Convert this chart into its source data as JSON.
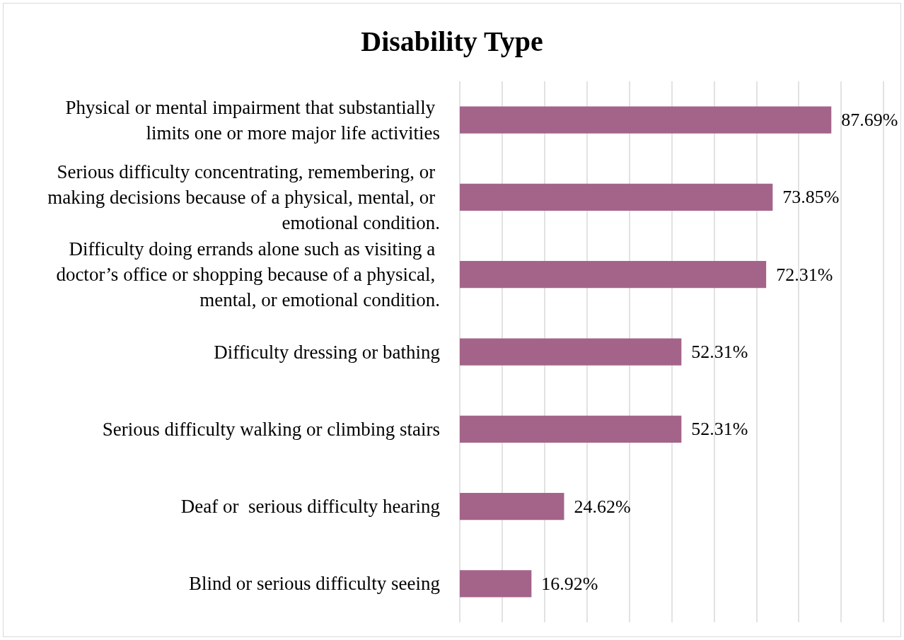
{
  "chart_data": {
    "type": "bar",
    "title": "Disability Type",
    "orientation": "horizontal",
    "categories": [
      "Physical or mental impairment that substantially limits one or more major life activities",
      "Serious difficulty concentrating, remembering, or making decisions because of a physical, mental, or emotional condition.",
      "Difficulty doing errands alone such as visiting a doctor’s office or shopping because of a physical, mental, or emotional condition.",
      "Difficulty dressing or bathing",
      "Serious difficulty walking or climbing stairs",
      "Deaf or  serious difficulty hearing",
      "Blind or serious difficulty seeing"
    ],
    "values": [
      87.69,
      73.85,
      72.31,
      52.31,
      52.31,
      24.62,
      16.92
    ],
    "value_labels": [
      "87.69%",
      "73.85%",
      "72.31%",
      "52.31%",
      "52.31%",
      "24.62%",
      "16.92%"
    ],
    "color": "#a4648a",
    "xlim": [
      0,
      100
    ],
    "xticks": [
      {
        "value": 0,
        "label": null
      },
      {
        "value": 10,
        "label": null
      },
      {
        "value": 20,
        "label": null
      },
      {
        "value": 30,
        "label": null
      },
      {
        "value": 40,
        "label": null
      },
      {
        "value": 50,
        "label": null
      },
      {
        "value": 60,
        "label": null
      },
      {
        "value": 70,
        "label": null
      },
      {
        "value": 80,
        "label": null
      },
      {
        "value": 90,
        "label": null
      },
      {
        "value": 100,
        "label": null
      }
    ],
    "grid": "x",
    "tick_labels": "y"
  }
}
